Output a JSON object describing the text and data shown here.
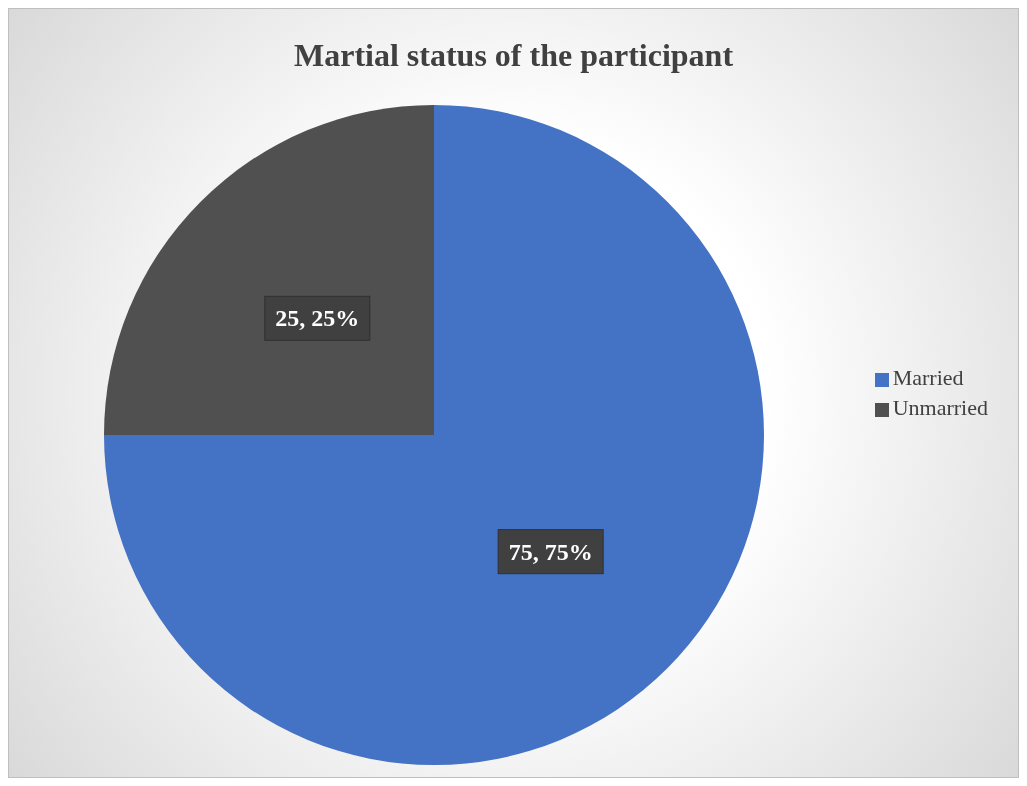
{
  "chart_data": {
    "type": "pie",
    "title": "Martial status of the participant",
    "categories": [
      "Married",
      "Unmarried"
    ],
    "values": [
      75,
      25
    ],
    "colors": [
      "#4472c4",
      "#505050"
    ],
    "value_labels": [
      "75, 75%",
      "25, 25%"
    ],
    "legend": "right"
  }
}
